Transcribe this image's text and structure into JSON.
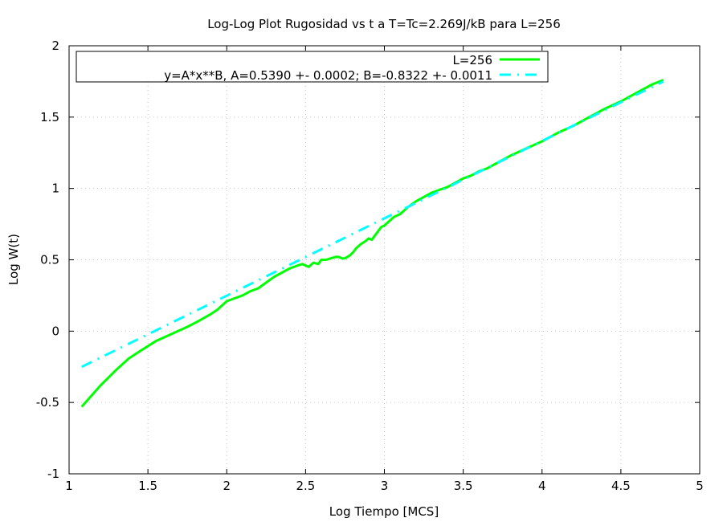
{
  "chart_data": {
    "type": "line",
    "title": "Log-Log Plot Rugosidad vs t a T=Tc=2.269J/kB para L=256",
    "xlabel": "Log Tiempo [MCS]",
    "ylabel": "Log W(t)",
    "xlim": [
      1,
      5
    ],
    "ylim": [
      -1,
      2
    ],
    "xticks": [
      1,
      1.5,
      2,
      2.5,
      3,
      3.5,
      4,
      4.5,
      5
    ],
    "xtick_labels": [
      "1",
      "1.5",
      "2",
      "2.5",
      "3",
      "3.5",
      "4",
      "4.5",
      "5"
    ],
    "yticks": [
      -1,
      -0.5,
      0,
      0.5,
      1,
      1.5,
      2
    ],
    "ytick_labels": [
      "-1",
      "-0.5",
      "0",
      "0.5",
      "1",
      "1.5",
      "2"
    ],
    "grid": true,
    "legend_position": "top-right",
    "series": [
      {
        "name": "L=256",
        "color": "#00ff00",
        "style": "solid",
        "x": [
          1.08,
          1.2,
          1.3,
          1.38,
          1.45,
          1.55,
          1.65,
          1.75,
          1.82,
          1.9,
          1.94,
          1.97,
          2.0,
          2.05,
          2.1,
          2.15,
          2.2,
          2.25,
          2.3,
          2.35,
          2.4,
          2.45,
          2.48,
          2.52,
          2.55,
          2.58,
          2.6,
          2.63,
          2.66,
          2.69,
          2.71,
          2.73,
          2.75,
          2.78,
          2.8,
          2.82,
          2.85,
          2.88,
          2.9,
          2.92,
          2.94,
          2.96,
          2.98,
          3.0,
          3.03,
          3.06,
          3.1,
          3.15,
          3.2,
          3.25,
          3.3,
          3.35,
          3.4,
          3.45,
          3.5,
          3.55,
          3.6,
          3.65,
          3.7,
          3.8,
          3.9,
          4.0,
          4.1,
          4.2,
          4.3,
          4.4,
          4.5,
          4.6,
          4.7,
          4.77
        ],
        "y": [
          -0.53,
          -0.38,
          -0.27,
          -0.19,
          -0.14,
          -0.07,
          -0.02,
          0.03,
          0.07,
          0.12,
          0.15,
          0.18,
          0.21,
          0.23,
          0.25,
          0.28,
          0.3,
          0.34,
          0.38,
          0.41,
          0.44,
          0.46,
          0.47,
          0.45,
          0.48,
          0.47,
          0.5,
          0.5,
          0.51,
          0.52,
          0.52,
          0.51,
          0.51,
          0.53,
          0.55,
          0.58,
          0.61,
          0.63,
          0.65,
          0.64,
          0.67,
          0.7,
          0.73,
          0.74,
          0.77,
          0.8,
          0.82,
          0.87,
          0.91,
          0.94,
          0.97,
          0.99,
          1.01,
          1.04,
          1.07,
          1.09,
          1.12,
          1.14,
          1.17,
          1.23,
          1.28,
          1.33,
          1.39,
          1.44,
          1.5,
          1.56,
          1.61,
          1.67,
          1.73,
          1.76
        ]
      },
      {
        "name": "y=A*x**B, A=0.5390 +- 0.0002; B=-0.8322 +- 0.0011",
        "color": "#00ffff",
        "style": "dash-dot",
        "x": [
          1.08,
          4.77
        ],
        "y": [
          -0.25,
          1.75
        ]
      }
    ]
  }
}
